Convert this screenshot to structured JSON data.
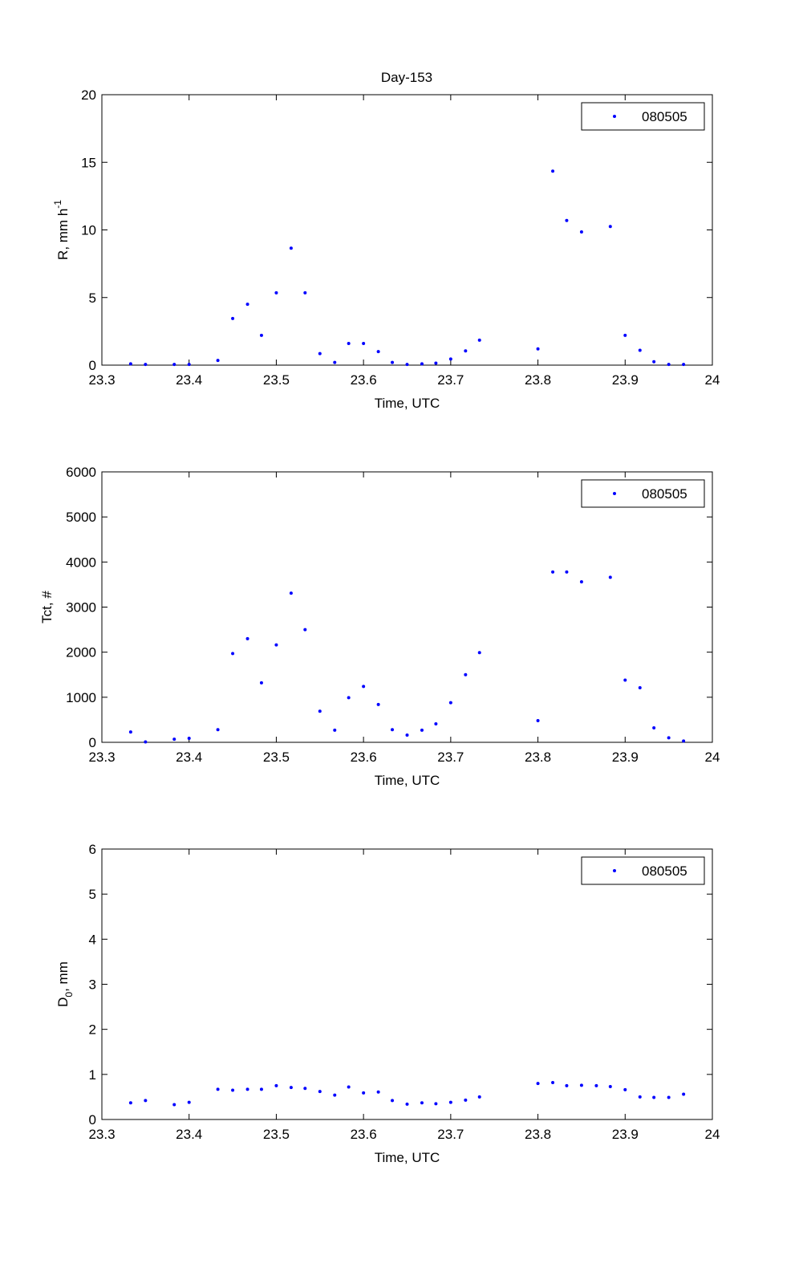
{
  "figure_title": "Day-153",
  "chart_data": [
    {
      "type": "scatter",
      "title": "Day-153",
      "xlabel": "Time, UTC",
      "ylabel": {
        "main": "R, mm h",
        "sup": "-1"
      },
      "xlim": [
        23.3,
        24
      ],
      "ylim": [
        0,
        20
      ],
      "xticks": [
        23.3,
        23.4,
        23.5,
        23.6,
        23.7,
        23.8,
        23.9,
        24
      ],
      "yticks": [
        0,
        5,
        10,
        15,
        20
      ],
      "xtick_labels": [
        "23.3",
        "23.4",
        "23.5",
        "23.6",
        "23.7",
        "23.8",
        "23.9",
        "24"
      ],
      "ytick_labels": [
        "0",
        "5",
        "10",
        "15",
        "20"
      ],
      "grid": false,
      "legend_position": "top-right",
      "color": "#0000ff",
      "series": [
        {
          "name": "080505",
          "x": [
            23.333,
            23.35,
            23.383,
            23.4,
            23.433,
            23.45,
            23.467,
            23.483,
            23.5,
            23.517,
            23.533,
            23.55,
            23.567,
            23.583,
            23.6,
            23.617,
            23.633,
            23.65,
            23.667,
            23.683,
            23.7,
            23.717,
            23.733,
            23.8,
            23.817,
            23.833,
            23.85,
            23.883,
            23.9,
            23.917,
            23.933,
            23.95,
            23.967
          ],
          "y": [
            0.1,
            0.05,
            0.05,
            0.05,
            0.35,
            3.45,
            4.5,
            2.2,
            5.35,
            8.65,
            5.35,
            0.85,
            0.2,
            1.6,
            1.6,
            1.0,
            0.2,
            0.05,
            0.1,
            0.15,
            0.45,
            1.05,
            1.85,
            1.2,
            14.35,
            10.7,
            9.85,
            10.25,
            2.2,
            1.1,
            0.25,
            0.05,
            0.05
          ]
        }
      ]
    },
    {
      "type": "scatter",
      "xlabel": "Time, UTC",
      "ylabel": {
        "main": "Tct, #",
        "sup": ""
      },
      "xlim": [
        23.3,
        24
      ],
      "ylim": [
        0,
        6000
      ],
      "xticks": [
        23.3,
        23.4,
        23.5,
        23.6,
        23.7,
        23.8,
        23.9,
        24
      ],
      "yticks": [
        0,
        1000,
        2000,
        3000,
        4000,
        5000,
        6000
      ],
      "xtick_labels": [
        "23.3",
        "23.4",
        "23.5",
        "23.6",
        "23.7",
        "23.8",
        "23.9",
        "24"
      ],
      "ytick_labels": [
        "0",
        "1000",
        "2000",
        "3000",
        "4000",
        "5000",
        "6000"
      ],
      "grid": false,
      "legend_position": "top-right",
      "color": "#0000ff",
      "series": [
        {
          "name": "080505",
          "x": [
            23.333,
            23.35,
            23.383,
            23.4,
            23.433,
            23.45,
            23.467,
            23.483,
            23.5,
            23.517,
            23.533,
            23.55,
            23.567,
            23.583,
            23.6,
            23.617,
            23.633,
            23.65,
            23.667,
            23.683,
            23.7,
            23.717,
            23.733,
            23.8,
            23.817,
            23.833,
            23.85,
            23.883,
            23.9,
            23.917,
            23.933,
            23.95,
            23.967
          ],
          "y": [
            230,
            10,
            70,
            90,
            280,
            1970,
            2300,
            1320,
            2160,
            3310,
            2500,
            690,
            270,
            990,
            1240,
            840,
            280,
            160,
            270,
            410,
            880,
            1500,
            1990,
            480,
            3780,
            3780,
            3560,
            3660,
            1380,
            1210,
            320,
            100,
            30
          ]
        }
      ]
    },
    {
      "type": "scatter",
      "xlabel": "Time, UTC",
      "ylabel": {
        "main": "D",
        "sub": "0",
        "after": ", mm"
      },
      "xlim": [
        23.3,
        24
      ],
      "ylim": [
        0,
        6
      ],
      "xticks": [
        23.3,
        23.4,
        23.5,
        23.6,
        23.7,
        23.8,
        23.9,
        24
      ],
      "yticks": [
        0,
        1,
        2,
        3,
        4,
        5,
        6
      ],
      "xtick_labels": [
        "23.3",
        "23.4",
        "23.5",
        "23.6",
        "23.7",
        "23.8",
        "23.9",
        "24"
      ],
      "ytick_labels": [
        "0",
        "1",
        "2",
        "3",
        "4",
        "5",
        "6"
      ],
      "grid": false,
      "legend_position": "top-right",
      "color": "#0000ff",
      "series": [
        {
          "name": "080505",
          "x": [
            23.333,
            23.35,
            23.383,
            23.4,
            23.433,
            23.45,
            23.467,
            23.483,
            23.5,
            23.517,
            23.533,
            23.55,
            23.567,
            23.583,
            23.6,
            23.617,
            23.633,
            23.65,
            23.667,
            23.683,
            23.7,
            23.717,
            23.733,
            23.8,
            23.817,
            23.833,
            23.85,
            23.867,
            23.883,
            23.9,
            23.917,
            23.933,
            23.95,
            23.967
          ],
          "y": [
            0.37,
            0.42,
            0.33,
            0.38,
            0.67,
            0.65,
            0.67,
            0.67,
            0.75,
            0.71,
            0.69,
            0.62,
            0.54,
            0.72,
            0.59,
            0.61,
            0.42,
            0.34,
            0.37,
            0.35,
            0.38,
            0.43,
            0.5,
            0.8,
            0.82,
            0.75,
            0.76,
            0.75,
            0.73,
            0.66,
            0.5,
            0.49,
            0.49,
            0.56
          ]
        }
      ]
    }
  ]
}
